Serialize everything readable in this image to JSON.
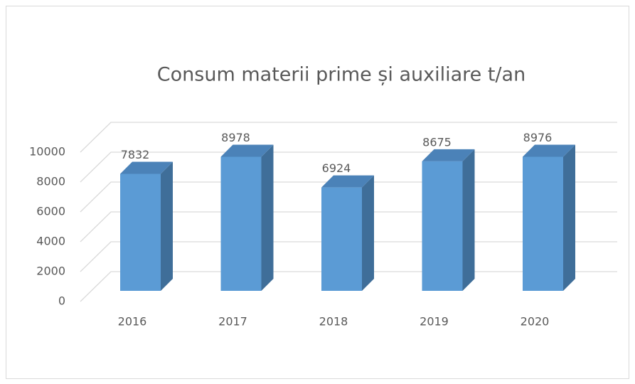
{
  "chart_data": {
    "type": "bar3d",
    "title": "Consum materii prime și auxiliare t/an",
    "categories": [
      "2016",
      "2017",
      "2018",
      "2019",
      "2020"
    ],
    "values": [
      7832,
      8978,
      6924,
      8675,
      8976
    ],
    "color": "#5b9bd5",
    "ylim": [
      0,
      10000
    ],
    "yticks": [
      0,
      2000,
      4000,
      6000,
      8000,
      10000
    ],
    "grid": true
  }
}
